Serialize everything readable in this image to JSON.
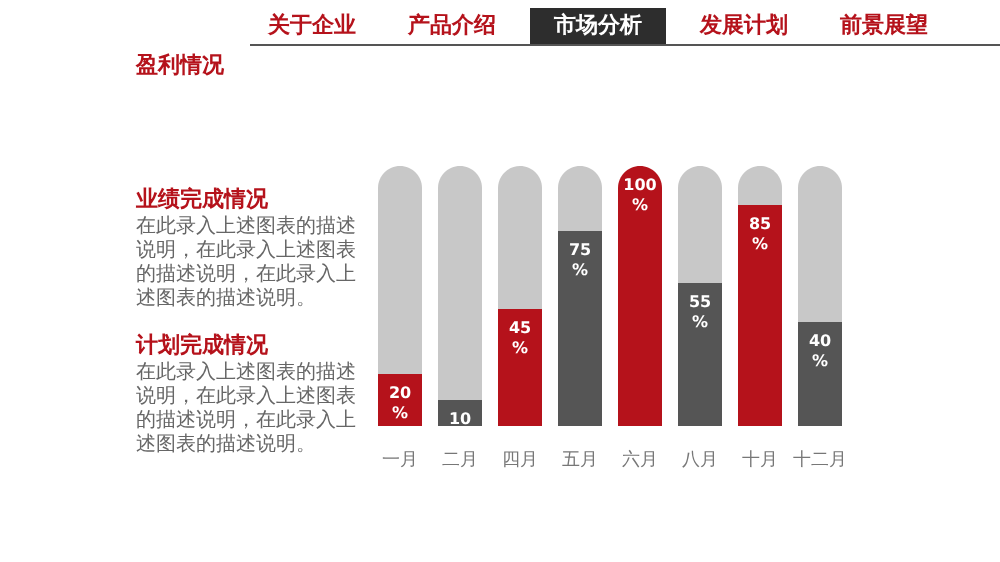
{
  "chart_data": {
    "type": "bar",
    "title": "盈利情况",
    "categories": [
      "一月",
      "二月",
      "四月",
      "五月",
      "六月",
      "八月",
      "十月",
      "十二月"
    ],
    "stacked": true,
    "ylim": [
      0,
      100
    ],
    "tick_labels": "x",
    "series": [
      {
        "colors": [
          "#b5121b",
          "#555555",
          "#b5121b",
          "#555555",
          "#b5121b",
          "#555555",
          "#b5121b",
          "#555555"
        ],
        "values": [
          20,
          10,
          45,
          75,
          100,
          55,
          85,
          40
        ],
        "value_labels": [
          "20\n%",
          "10\n%",
          "45\n%",
          "75\n%",
          "100\n%",
          "55\n%",
          "85\n%",
          "40\n%"
        ]
      },
      {
        "color": "#c8c8c8",
        "values": [
          80,
          90,
          55,
          25,
          0,
          45,
          15,
          60
        ]
      }
    ],
    "annotations": [
      "关于企业",
      "产品介绍",
      "市场分析",
      "发展计划",
      "前景展望",
      "业绩完成情况",
      "在此录入上述图表的描述说明，在此录入上述图表的描述说明，在此录入上述图表的描述说明。",
      "计划完成情况",
      "在此录入上述图表的描述说明，在此录入上述图表的描述说明，在此录入上述图表的描述说明。"
    ]
  }
}
